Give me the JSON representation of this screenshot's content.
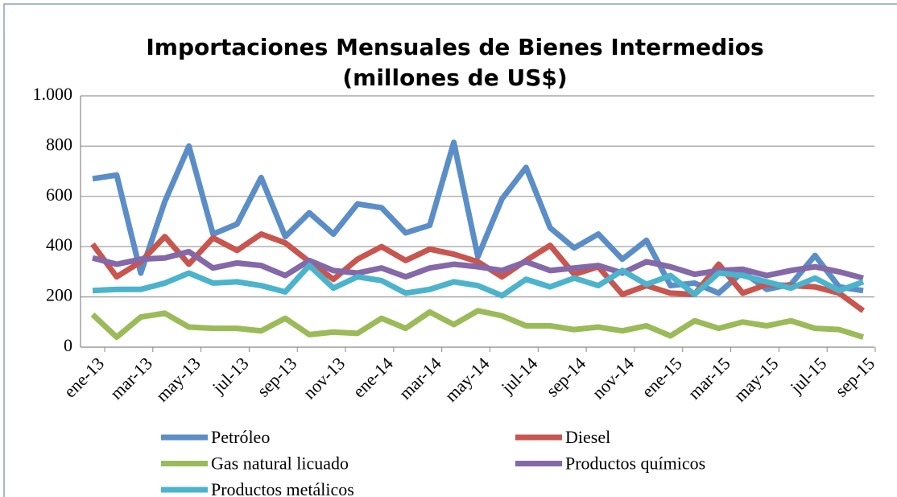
{
  "chart_data": {
    "type": "line",
    "title": [
      "Importaciones Mensuales de Bienes Intermedios",
      "(millones de US$)"
    ],
    "categories": [
      "ene-13",
      null,
      "mar-13",
      null,
      "may-13",
      null,
      "jul-13",
      null,
      "sep-13",
      null,
      "nov-13",
      null,
      "ene-14",
      null,
      "mar-14",
      null,
      "may-14",
      null,
      "jul-14",
      null,
      "sep-14",
      null,
      "nov-14",
      null,
      "ene-15",
      null,
      "mar-15",
      null,
      "may-15",
      null,
      "jul-15",
      null,
      "sep-15"
    ],
    "series": [
      {
        "name": "Petróleo",
        "color": "#5b8ec7",
        "values": [
          670,
          685,
          295,
          580,
          800,
          450,
          490,
          675,
          440,
          535,
          450,
          570,
          555,
          455,
          485,
          815,
          360,
          590,
          715,
          475,
          395,
          450,
          350,
          425,
          245,
          255,
          215,
          300,
          230,
          250,
          365,
          240,
          225
        ]
      },
      {
        "name": "Diesel",
        "color": "#c9554f",
        "values": [
          410,
          280,
          340,
          440,
          330,
          435,
          385,
          450,
          415,
          340,
          270,
          350,
          400,
          345,
          390,
          370,
          340,
          280,
          345,
          405,
          290,
          320,
          210,
          245,
          215,
          210,
          330,
          215,
          250,
          245,
          240,
          215,
          145
        ]
      },
      {
        "name": "Gas natural licuado",
        "color": "#9bbb59",
        "values": [
          130,
          40,
          120,
          135,
          80,
          75,
          75,
          65,
          115,
          50,
          60,
          55,
          115,
          75,
          140,
          90,
          145,
          125,
          85,
          85,
          70,
          80,
          65,
          85,
          45,
          105,
          75,
          100,
          85,
          105,
          75,
          70,
          40
        ]
      },
      {
        "name": "Productos químicos",
        "color": "#8468a8",
        "values": [
          355,
          330,
          350,
          355,
          380,
          315,
          335,
          325,
          285,
          345,
          305,
          295,
          315,
          280,
          315,
          330,
          320,
          305,
          340,
          305,
          315,
          325,
          295,
          340,
          320,
          290,
          305,
          310,
          285,
          305,
          320,
          300,
          275
        ]
      },
      {
        "name": "Productos metálicos",
        "color": "#4bb4cc",
        "values": [
          225,
          230,
          230,
          255,
          295,
          255,
          260,
          245,
          220,
          325,
          235,
          280,
          265,
          215,
          230,
          260,
          245,
          205,
          270,
          240,
          275,
          245,
          305,
          250,
          285,
          210,
          295,
          285,
          260,
          235,
          275,
          225,
          260
        ]
      }
    ],
    "ylim": [
      0,
      1000
    ],
    "yticks": [
      0,
      200,
      400,
      600,
      800,
      {
        "value": 1000,
        "label": "1.000"
      }
    ],
    "grid": true
  }
}
